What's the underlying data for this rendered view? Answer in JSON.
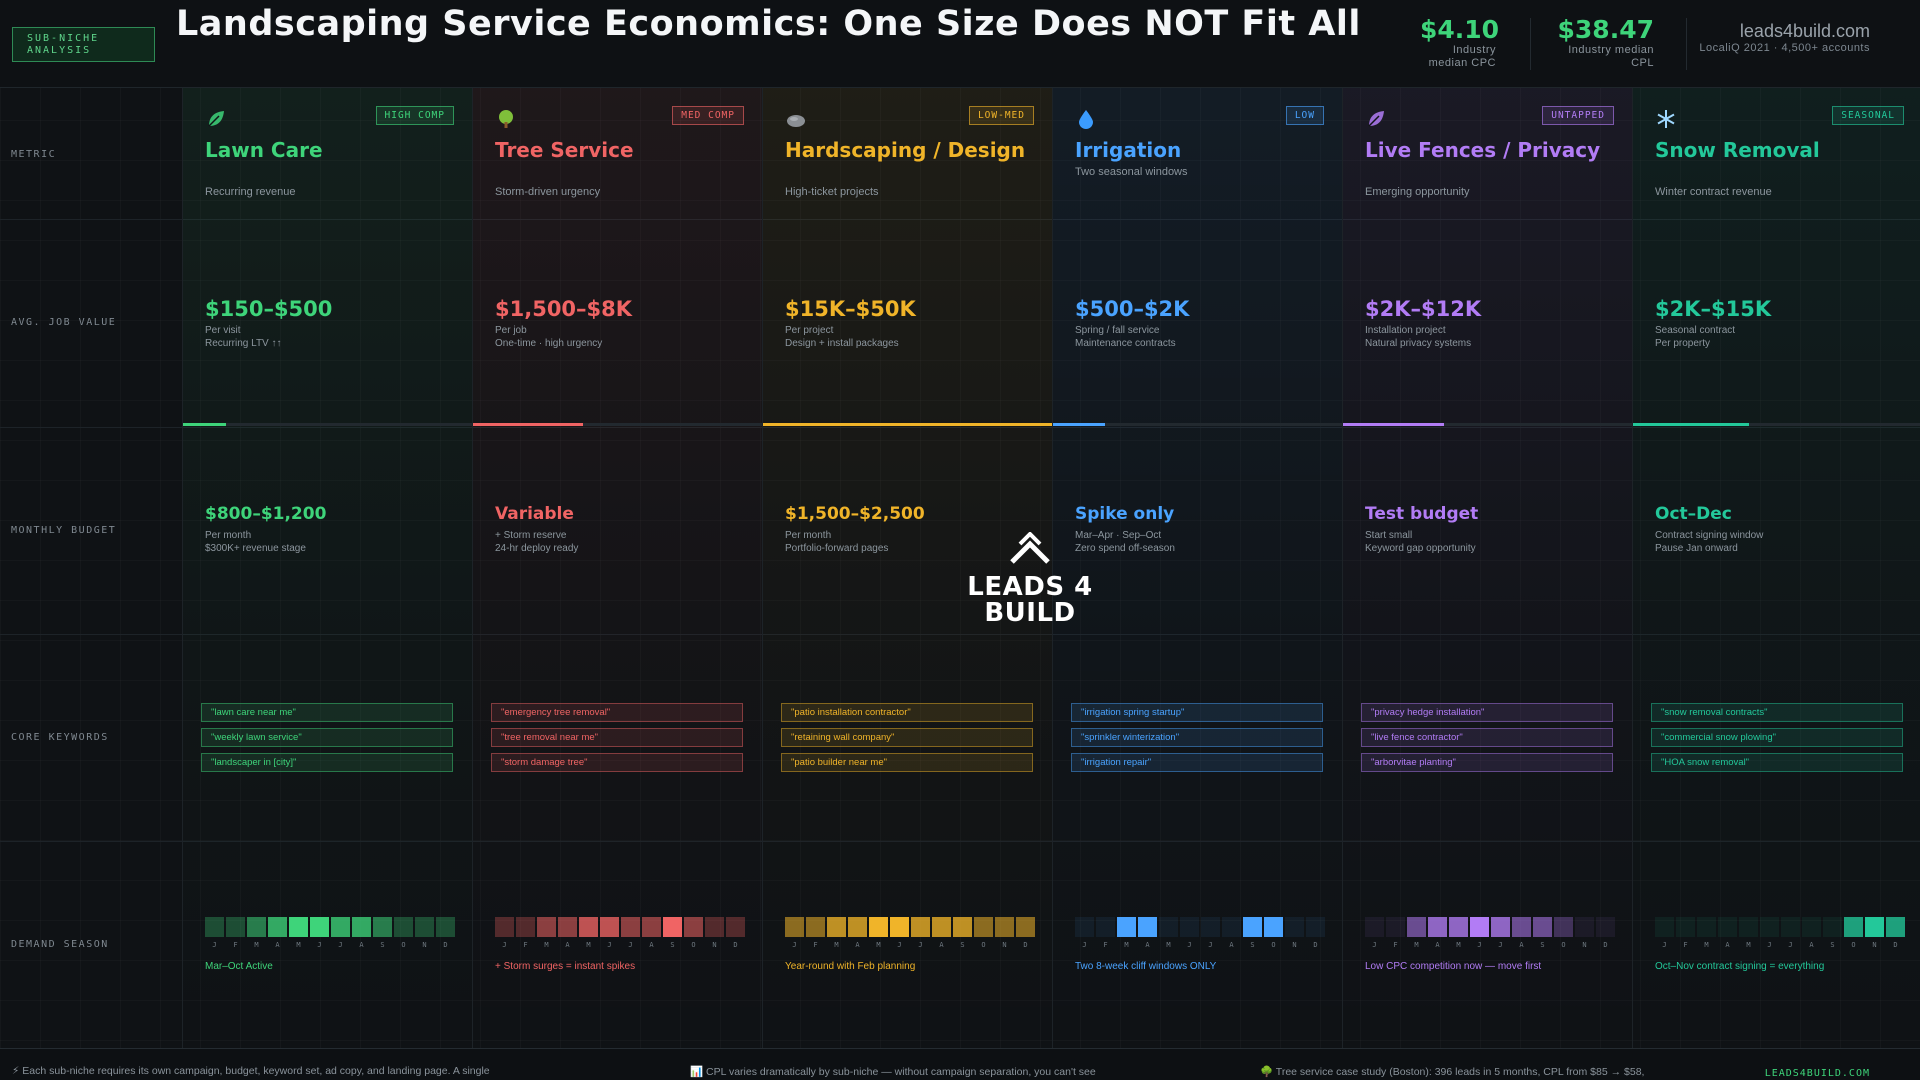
{
  "header": {
    "tag": "SUB-NICHE ANALYSIS",
    "title": "Landscaping Service Economics: One Size Does NOT Fit All",
    "stat1": {
      "value": "$4.10",
      "label": "Industry median CPC"
    },
    "stat2": {
      "value": "$38.47",
      "label": "Industry median CPL"
    },
    "source": {
      "domain": "leads4build.com",
      "sub": "LocaliQ 2021 · 4,500+ accounts"
    }
  },
  "rows": {
    "metric": "METRIC",
    "job_value": "AVG. JOB VALUE",
    "budget": "MONTHLY BUDGET",
    "keywords": "CORE KEYWORDS",
    "season": "DEMAND SEASON"
  },
  "month_letters": [
    "J",
    "F",
    "M",
    "A",
    "M",
    "J",
    "J",
    "A",
    "S",
    "O",
    "N",
    "D"
  ],
  "columns": [
    {
      "icon": "leaf-icon",
      "badge": "HIGH COMP",
      "name": "Lawn Care",
      "subtitle": "Recurring revenue",
      "color": "#3ed47a",
      "job_value": "$150–$500",
      "job_line1": "Per visit",
      "job_line2": "Recurring LTV ↑↑",
      "value_level": 0.15,
      "budget": "$800–$1,200",
      "budget_line1": "Per month",
      "budget_line2": "$300K+ revenue stage",
      "keywords": [
        "\"lawn care near me\"",
        "\"weekly lawn service\"",
        "\"landscaper in [city]\""
      ],
      "season_levels": [
        1,
        1,
        2,
        3,
        4,
        4,
        3,
        3,
        2,
        1,
        1,
        1
      ],
      "season_note": "Mar–Oct Active"
    },
    {
      "icon": "tree-icon",
      "badge": "MED COMP",
      "name": "Tree Service",
      "subtitle": "Storm-driven urgency",
      "color": "#f06464",
      "job_value": "$1,500–$8K",
      "job_line1": "Per job",
      "job_line2": "One-time · high urgency",
      "value_level": 0.38,
      "budget": "Variable",
      "budget_line1": "+ Storm reserve",
      "budget_line2": "24-hr deploy ready",
      "keywords": [
        "\"emergency tree removal\"",
        "\"tree removal near me\"",
        "\"storm damage tree\""
      ],
      "season_levels": [
        1,
        1,
        2,
        2,
        3,
        3,
        2,
        2,
        4,
        2,
        1,
        1
      ],
      "season_note": "+ Storm surges = instant spikes"
    },
    {
      "icon": "stone-icon",
      "badge": "LOW-MED",
      "name": "Hardscaping / Design",
      "subtitle": "High-ticket projects",
      "color": "#f0b429",
      "job_value": "$15K–$50K",
      "job_line1": "Per project",
      "job_line2": "Design + install packages",
      "value_level": 1.0,
      "budget": "$1,500–$2,500",
      "budget_line1": "Per month",
      "budget_line2": "Portfolio-forward pages",
      "keywords": [
        "\"patio installation contractor\"",
        "\"retaining wall company\"",
        "\"patio builder near me\""
      ],
      "season_levels": [
        2,
        2,
        3,
        3,
        4,
        4,
        3,
        3,
        3,
        2,
        2,
        2
      ],
      "season_note": "Year-round with Feb planning"
    },
    {
      "icon": "droplet-icon",
      "badge": "LOW",
      "name": "Irrigation",
      "subtitle": "Two seasonal windows",
      "color": "#4aa3ff",
      "job_value": "$500–$2K",
      "job_line1": "Spring / fall service",
      "job_line2": "Maintenance contracts",
      "value_level": 0.18,
      "budget": "Spike only",
      "budget_line1": "Mar–Apr · Sep–Oct",
      "budget_line2": "Zero spend off-season",
      "keywords": [
        "\"irrigation spring startup\"",
        "\"sprinkler winterization\"",
        "\"irrigation repair\""
      ],
      "season_levels": [
        0,
        0,
        4,
        4,
        0,
        0,
        0,
        0,
        4,
        4,
        0,
        0
      ],
      "season_note": "Two 8-week cliff windows ONLY"
    },
    {
      "icon": "leaf-icon",
      "badge": "UNTAPPED",
      "name": "Live Fences / Privacy",
      "subtitle": "Emerging opportunity",
      "color": "#b27cf5",
      "job_value": "$2K–$12K",
      "job_line1": "Installation project",
      "job_line2": "Natural privacy systems",
      "value_level": 0.35,
      "budget": "Test budget",
      "budget_line1": "Start small",
      "budget_line2": "Keyword gap opportunity",
      "keywords": [
        "\"privacy hedge installation\"",
        "\"live fence contractor\"",
        "\"arborvitae planting\""
      ],
      "season_levels": [
        0,
        0,
        2,
        3,
        3,
        4,
        3,
        2,
        2,
        1,
        0,
        0
      ],
      "season_note": "Low CPC competition now — move first"
    },
    {
      "icon": "snowflake-icon",
      "badge": "SEASONAL",
      "name": "Snow Removal",
      "subtitle": "Winter contract revenue",
      "color": "#23c89a",
      "job_value": "$2K–$15K",
      "job_line1": "Seasonal contract",
      "job_line2": "Per property",
      "value_level": 0.4,
      "budget": "Oct–Dec",
      "budget_line1": "Contract signing window",
      "budget_line2": "Pause Jan onward",
      "keywords": [
        "\"snow removal contracts\"",
        "\"commercial snow plowing\"",
        "\"HOA snow removal\""
      ],
      "season_levels": [
        0,
        0,
        0,
        0,
        0,
        0,
        0,
        0,
        0,
        3,
        4,
        3
      ],
      "season_note": "Oct–Nov contract signing = everything"
    }
  ],
  "logo": {
    "line1": "LEADS 4",
    "line2": "BUILD"
  },
  "footer": {
    "note1": "⚡ Each sub-niche requires its own campaign, budget, keyword set, ad copy, and landing page. A single",
    "note2": "📊 CPL varies dramatically by sub-niche — without campaign separation, you can't see",
    "note3": "🌳 Tree service case study (Boston): 396 leads in 5 months, CPL from $85 → $58,",
    "brand": "LEADS4BUILD.COM"
  }
}
